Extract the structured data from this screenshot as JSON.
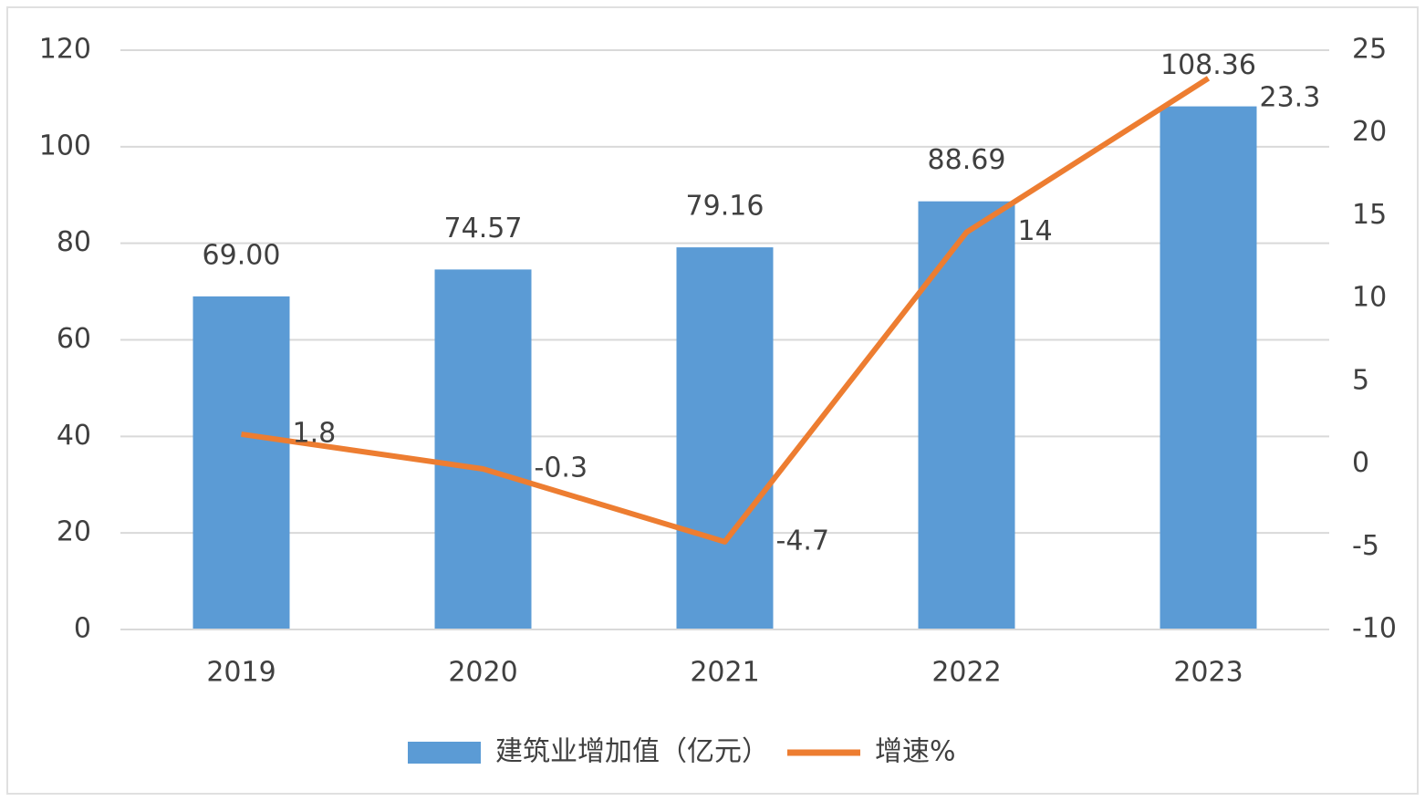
{
  "chart_data": {
    "type": "combo",
    "categories": [
      "2019",
      "2020",
      "2021",
      "2022",
      "2023"
    ],
    "series": [
      {
        "name": "建筑业增加值（亿元）",
        "type": "bar",
        "color": "#5b9bd5",
        "values": [
          69.0,
          74.57,
          79.16,
          88.69,
          108.36
        ],
        "value_labels": [
          "69.00",
          "74.57",
          "79.16",
          "88.69",
          "108.36"
        ]
      },
      {
        "name": "增速%",
        "type": "line",
        "axis": "y2",
        "color": "#ed7d31",
        "values": [
          1.8,
          -0.3,
          -4.7,
          14,
          23.3
        ]
      }
    ],
    "ylim": [
      0,
      120
    ],
    "yticks": [
      0,
      20,
      40,
      60,
      80,
      100,
      120
    ],
    "y2lim": [
      -10,
      25
    ],
    "y2ticks": [
      -10,
      -5,
      0,
      5,
      10,
      15,
      20,
      25
    ],
    "grid": true,
    "legend": "bottom"
  }
}
